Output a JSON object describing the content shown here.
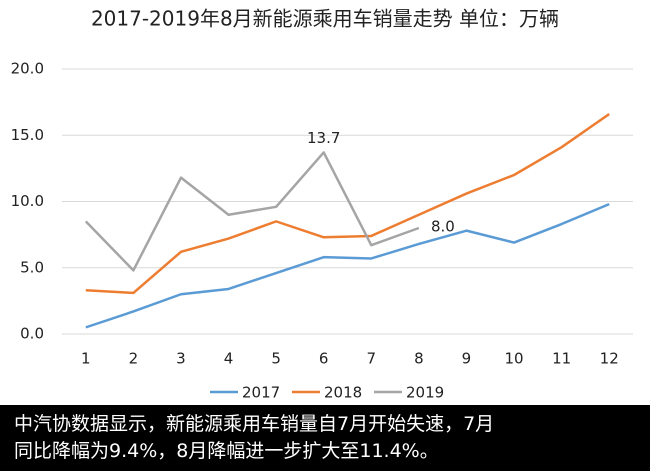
{
  "chart_data": {
    "type": "line",
    "title": "2017-2019年8月新能源乘用车销量走势  单位：万辆",
    "categories": [
      "1",
      "2",
      "3",
      "4",
      "5",
      "6",
      "7",
      "8",
      "9",
      "10",
      "11",
      "12"
    ],
    "series": [
      {
        "name": "2017",
        "color": "#5b9bd5",
        "values": [
          0.5,
          1.7,
          3.0,
          3.4,
          4.6,
          5.8,
          5.7,
          6.8,
          7.8,
          6.9,
          8.3,
          9.8
        ]
      },
      {
        "name": "2018",
        "color": "#ed7d31",
        "values": [
          3.3,
          3.1,
          6.2,
          7.2,
          8.5,
          7.3,
          7.4,
          9.0,
          10.6,
          12.0,
          14.1,
          16.6
        ]
      },
      {
        "name": "2019",
        "color": "#a5a5a5",
        "values": [
          8.5,
          4.8,
          11.8,
          9.0,
          9.6,
          13.7,
          6.7,
          8.0,
          null,
          null,
          null,
          null
        ],
        "value_labels": [
          null,
          null,
          null,
          null,
          null,
          "13.7",
          null,
          "8.0",
          null,
          null,
          null,
          null
        ]
      }
    ],
    "ylim": [
      0,
      20
    ],
    "yticks": [
      {
        "value": 0,
        "label": "0.0"
      },
      {
        "value": 5,
        "label": "5.0"
      },
      {
        "value": 10,
        "label": "10.0"
      },
      {
        "value": 15,
        "label": "15.0"
      },
      {
        "value": 20,
        "label": "20.0"
      }
    ],
    "grid": true,
    "legend": "bottom",
    "caption": [
      "中汽协数据显示，新能源乘用车销量自7月开始失速，7月",
      "同比降幅为9.4%，8月降幅进一步扩大至11.4%。"
    ]
  }
}
